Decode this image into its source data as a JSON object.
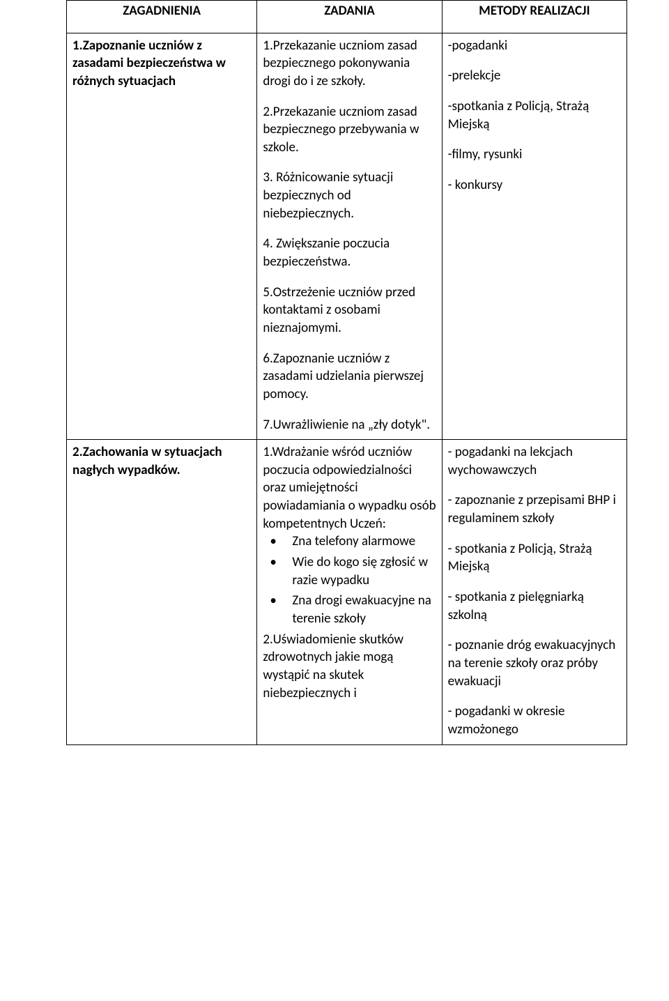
{
  "table": {
    "headers": [
      "ZAGADNIENIA",
      "ZADANIA",
      "METODY REALIZACJI"
    ],
    "rows": [
      {
        "zagadnienia": "1.Zapoznanie uczniów z zasadami bezpieczeństwa w różnych sytuacjach",
        "zadania": {
          "paras": [
            "1.Przekazanie uczniom zasad bezpiecznego pokonywania drogi do i ze szkoły.",
            "2.Przekazanie uczniom zasad bezpiecznego przebywania w szkole.",
            "3. Różnicowanie sytuacji bezpiecznych od niebezpiecznych.",
            "4. Zwiększanie poczucia bezpieczeństwa.",
            "5.Ostrzeżenie uczniów przed kontaktami z osobami nieznajomymi.",
            "6.Zapoznanie uczniów z zasadami udzielania pierwszej pomocy.",
            "7.Uwrażliwienie na „zły dotyk\"."
          ]
        },
        "metody": {
          "paras": [
            "-pogadanki",
            "-prelekcje",
            "-spotkania z Policją, Strażą Miejską",
            "-filmy, rysunki",
            "- konkursy"
          ]
        }
      },
      {
        "zagadnienia": "2.Zachowania w sytuacjach nagłych wypadków.",
        "zadania": {
          "intro": "1.Wdrażanie wśród uczniów poczucia odpowiedzialności oraz umiejętności powiadamiania o wypadku osób kompetentnych Uczeń:",
          "bullets": [
            "Zna telefony alarmowe",
            "Wie do kogo się zgłosić w razie wypadku",
            "Zna drogi ewakuacyjne na terenie szkoły"
          ],
          "outro": "2.Uświadomienie skutków zdrowotnych jakie mogą wystąpić na skutek niebezpiecznych i"
        },
        "metody": {
          "paras": [
            "- pogadanki na lekcjach wychowawczych",
            "- zapoznanie z przepisami BHP i regulaminem szkoły",
            "- spotkania z Policją, Strażą Miejską",
            "- spotkania z pielęgniarką szkolną",
            "- poznanie dróg ewakuacyjnych na terenie szkoły oraz próby ewakuacji",
            "- pogadanki w okresie wzmożonego"
          ]
        }
      }
    ]
  }
}
